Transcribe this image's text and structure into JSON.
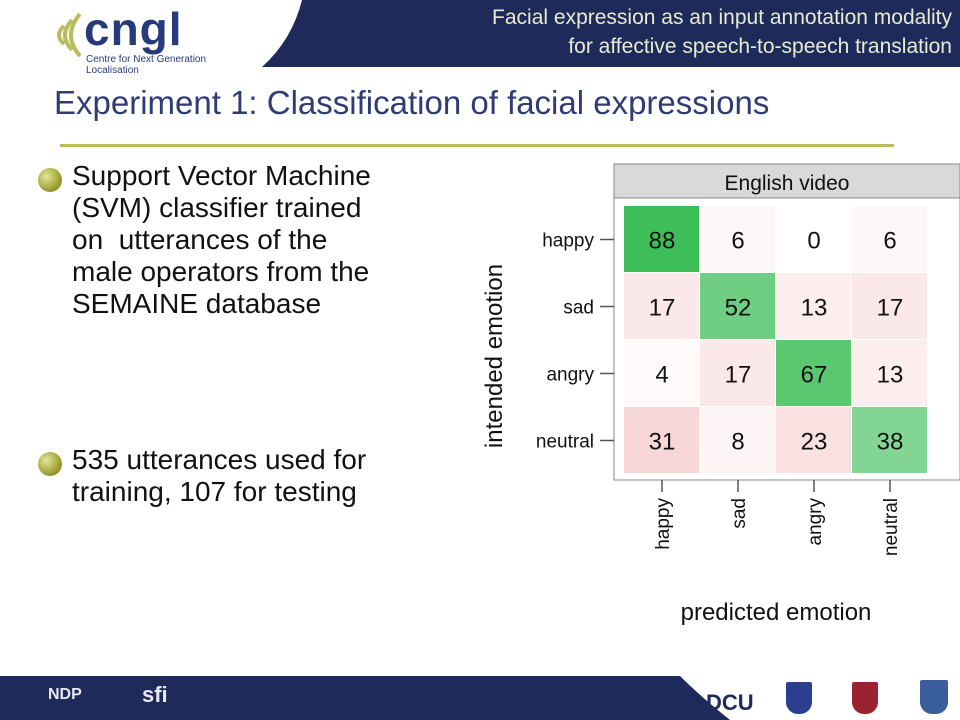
{
  "header": {
    "brand": "cngl",
    "brand_subtitle": "Centre for Next Generation Localisation",
    "line1": "Facial expression as an input annotation modality",
    "line2": "for affective speech-to-speech translation"
  },
  "slide": {
    "title": "Experiment 1: Classification of facial expressions",
    "bullets": [
      {
        "lines": [
          "Support Vector Machine",
          "(SVM) classifier trained",
          "on  utterances of the",
          "male operators from the",
          "SEMAINE database"
        ]
      },
      {
        "lines": [
          "535 utterances used for",
          "training, 107 for testing"
        ]
      }
    ]
  },
  "chart_data": {
    "type": "heatmap",
    "title": "English video",
    "xlabel": "predicted emotion",
    "ylabel": "intended emotion",
    "rows": [
      "happy",
      "sad",
      "angry",
      "neutral"
    ],
    "columns": [
      "happy",
      "sad",
      "angry",
      "neutral"
    ],
    "values": [
      [
        88,
        6,
        0,
        6
      ],
      [
        17,
        52,
        13,
        17
      ],
      [
        4,
        17,
        67,
        13
      ],
      [
        31,
        8,
        23,
        38
      ]
    ],
    "colors": {
      "diagonal": "#2eb84a",
      "off_diagonal": "#e88a8a",
      "strip": "#d9d9d9"
    }
  },
  "footer": {
    "logos": [
      "NDP",
      "sfi",
      "DCU"
    ],
    "colors": {
      "band": "#1e2a5a"
    }
  },
  "colors": {
    "header_band": "#1e2a5a",
    "title": "#2f3c74",
    "rule": "#b9bd5c",
    "bullet": "#a5a83a"
  }
}
